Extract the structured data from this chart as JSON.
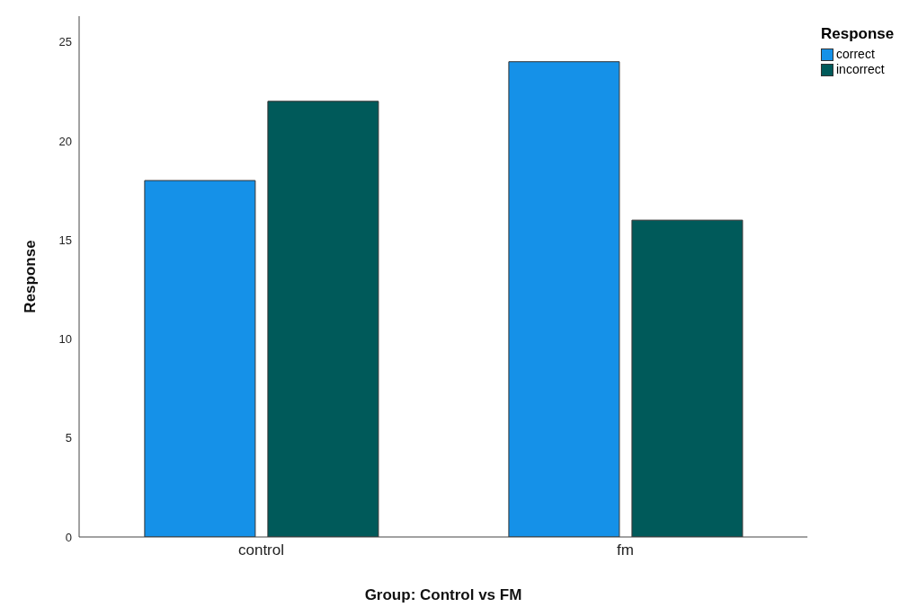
{
  "chart_data": {
    "type": "bar",
    "xlabel": "Group: Control vs FM",
    "ylabel": "Response",
    "legend_title": "Response",
    "categories": [
      "control",
      "fm"
    ],
    "series": [
      {
        "name": "correct",
        "color": "#1591e8",
        "values": [
          18,
          24
        ]
      },
      {
        "name": "incorrect",
        "color": "#005a5a",
        "values": [
          22,
          16
        ]
      }
    ],
    "ylim": [
      0,
      26.3
    ],
    "yticks": [
      0,
      5,
      10,
      15,
      20,
      25
    ],
    "grid": false,
    "legend": "top right"
  }
}
